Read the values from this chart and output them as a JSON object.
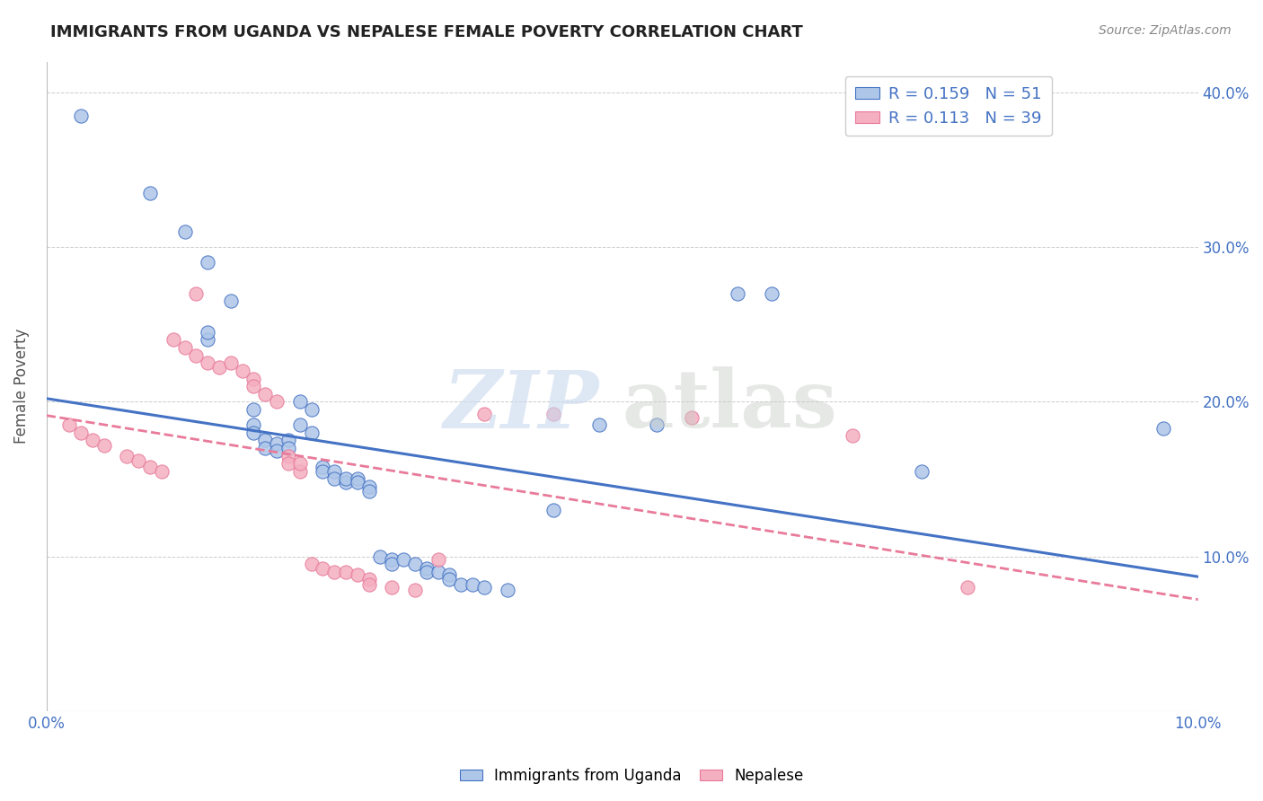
{
  "title": "IMMIGRANTS FROM UGANDA VS NEPALESE FEMALE POVERTY CORRELATION CHART",
  "source": "Source: ZipAtlas.com",
  "ylabel": "Female Poverty",
  "legend_label_1": "Immigrants from Uganda",
  "legend_label_2": "Nepalese",
  "R1": 0.159,
  "N1": 51,
  "R2": 0.113,
  "N2": 39,
  "color_blue": "#aec6e8",
  "color_pink": "#f4afc0",
  "line_color_blue": "#4472c4",
  "line_color_pink": "#e87a9a",
  "xlim": [
    0,
    0.1
  ],
  "ylim": [
    0,
    0.42
  ],
  "blue_points": [
    [
      0.003,
      0.385
    ],
    [
      0.009,
      0.335
    ],
    [
      0.012,
      0.31
    ],
    [
      0.014,
      0.29
    ],
    [
      0.016,
      0.265
    ],
    [
      0.014,
      0.24
    ],
    [
      0.014,
      0.245
    ],
    [
      0.018,
      0.195
    ],
    [
      0.018,
      0.185
    ],
    [
      0.018,
      0.18
    ],
    [
      0.019,
      0.175
    ],
    [
      0.019,
      0.17
    ],
    [
      0.02,
      0.173
    ],
    [
      0.02,
      0.168
    ],
    [
      0.021,
      0.175
    ],
    [
      0.021,
      0.17
    ],
    [
      0.022,
      0.185
    ],
    [
      0.023,
      0.195
    ],
    [
      0.022,
      0.2
    ],
    [
      0.023,
      0.18
    ],
    [
      0.024,
      0.158
    ],
    [
      0.024,
      0.155
    ],
    [
      0.025,
      0.155
    ],
    [
      0.025,
      0.15
    ],
    [
      0.026,
      0.148
    ],
    [
      0.026,
      0.15
    ],
    [
      0.027,
      0.15
    ],
    [
      0.027,
      0.148
    ],
    [
      0.028,
      0.145
    ],
    [
      0.028,
      0.142
    ],
    [
      0.029,
      0.1
    ],
    [
      0.03,
      0.098
    ],
    [
      0.03,
      0.095
    ],
    [
      0.031,
      0.098
    ],
    [
      0.032,
      0.095
    ],
    [
      0.033,
      0.092
    ],
    [
      0.033,
      0.09
    ],
    [
      0.034,
      0.09
    ],
    [
      0.035,
      0.088
    ],
    [
      0.035,
      0.085
    ],
    [
      0.036,
      0.082
    ],
    [
      0.037,
      0.082
    ],
    [
      0.038,
      0.08
    ],
    [
      0.04,
      0.078
    ],
    [
      0.044,
      0.13
    ],
    [
      0.048,
      0.185
    ],
    [
      0.053,
      0.185
    ],
    [
      0.06,
      0.27
    ],
    [
      0.063,
      0.27
    ],
    [
      0.076,
      0.155
    ],
    [
      0.097,
      0.183
    ]
  ],
  "pink_points": [
    [
      0.002,
      0.185
    ],
    [
      0.003,
      0.18
    ],
    [
      0.004,
      0.175
    ],
    [
      0.005,
      0.172
    ],
    [
      0.007,
      0.165
    ],
    [
      0.008,
      0.162
    ],
    [
      0.009,
      0.158
    ],
    [
      0.01,
      0.155
    ],
    [
      0.011,
      0.24
    ],
    [
      0.012,
      0.235
    ],
    [
      0.013,
      0.23
    ],
    [
      0.013,
      0.27
    ],
    [
      0.014,
      0.225
    ],
    [
      0.015,
      0.222
    ],
    [
      0.016,
      0.225
    ],
    [
      0.017,
      0.22
    ],
    [
      0.018,
      0.215
    ],
    [
      0.018,
      0.21
    ],
    [
      0.019,
      0.205
    ],
    [
      0.02,
      0.2
    ],
    [
      0.021,
      0.165
    ],
    [
      0.021,
      0.16
    ],
    [
      0.022,
      0.155
    ],
    [
      0.022,
      0.16
    ],
    [
      0.023,
      0.095
    ],
    [
      0.024,
      0.092
    ],
    [
      0.025,
      0.09
    ],
    [
      0.026,
      0.09
    ],
    [
      0.027,
      0.088
    ],
    [
      0.028,
      0.085
    ],
    [
      0.028,
      0.082
    ],
    [
      0.03,
      0.08
    ],
    [
      0.032,
      0.078
    ],
    [
      0.034,
      0.098
    ],
    [
      0.038,
      0.192
    ],
    [
      0.044,
      0.192
    ],
    [
      0.056,
      0.19
    ],
    [
      0.07,
      0.178
    ],
    [
      0.08,
      0.08
    ]
  ]
}
